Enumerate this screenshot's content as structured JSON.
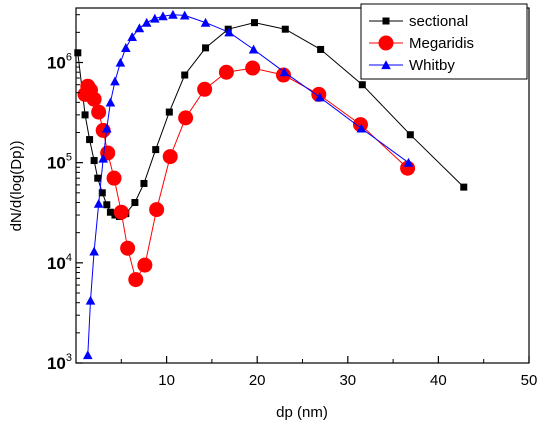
{
  "chart_data": {
    "type": "line",
    "xlabel": "dp (nm)",
    "ylabel": "dN/d(log(Dp))",
    "xlim": [
      0,
      50
    ],
    "ylim": [
      1000,
      3500000
    ],
    "yscale": "log",
    "x_ticks": [
      10,
      20,
      30,
      40,
      50
    ],
    "y_ticks": [
      {
        "value": 1000,
        "base": "10",
        "exp": "3"
      },
      {
        "value": 10000,
        "base": "10",
        "exp": "4"
      },
      {
        "value": 100000,
        "base": "10",
        "exp": "5"
      },
      {
        "value": 1000000,
        "base": "10",
        "exp": "6"
      }
    ],
    "legend_position": "top-right",
    "grid": false,
    "series": [
      {
        "name": "sectional",
        "color": "#000000",
        "marker": "square",
        "x": [
          0.2,
          1.0,
          1.5,
          2.0,
          2.4,
          2.9,
          3.4,
          3.8,
          4.3,
          4.8,
          5.5,
          6.5,
          7.5,
          8.8,
          10.3,
          12.0,
          14.3,
          16.8,
          19.7,
          23.1,
          27.0,
          31.6,
          36.9,
          42.8
        ],
        "y": [
          1250000,
          300000,
          170000,
          105000,
          70000,
          50000,
          38000,
          32000,
          30000,
          29000,
          31000,
          40000,
          62000,
          135000,
          320000,
          750000,
          1400000,
          2150000,
          2500000,
          2150000,
          1350000,
          600000,
          190000,
          57000
        ]
      },
      {
        "name": "Megaridis",
        "color": "#ff0000",
        "marker": "circle",
        "x": [
          1.0,
          1.3,
          1.6,
          2.0,
          2.5,
          3.0,
          3.5,
          4.2,
          5.0,
          5.7,
          6.6,
          7.6,
          8.9,
          10.4,
          12.1,
          14.2,
          16.6,
          19.5,
          22.9,
          26.8,
          31.4,
          36.6
        ],
        "y": [
          480000,
          580000,
          530000,
          430000,
          320000,
          210000,
          125000,
          70000,
          32000,
          14000,
          6800,
          9500,
          34000,
          115000,
          280000,
          540000,
          800000,
          880000,
          750000,
          480000,
          240000,
          88000
        ]
      },
      {
        "name": "Whitby",
        "color": "#0000ff",
        "marker": "triangle",
        "x": [
          1.3,
          1.6,
          2.0,
          2.5,
          3.0,
          3.4,
          3.8,
          4.3,
          4.9,
          5.5,
          6.2,
          7.0,
          7.8,
          8.7,
          9.6,
          10.7,
          12.0,
          14.3,
          16.9,
          19.6,
          23.0,
          26.9,
          31.5,
          36.7
        ],
        "y": [
          1200,
          4200,
          13000,
          39000,
          110000,
          220000,
          400000,
          650000,
          1000000,
          1400000,
          1800000,
          2200000,
          2500000,
          2750000,
          2900000,
          3000000,
          2950000,
          2500000,
          2000000,
          1350000,
          800000,
          450000,
          220000,
          100000
        ]
      }
    ]
  }
}
